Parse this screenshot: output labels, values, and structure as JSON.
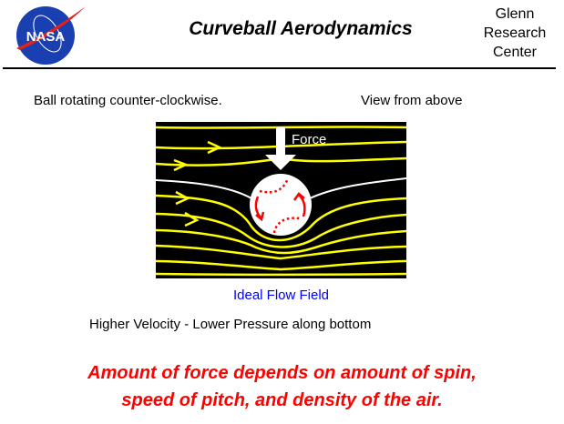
{
  "header": {
    "logo_text": "NASA",
    "title": "Curveball  Aerodynamics",
    "center_lines": [
      "Glenn",
      "Research",
      "Center"
    ]
  },
  "captions": {
    "rotation": "Ball rotating counter-clockwise.",
    "view": "View from above",
    "force_label": "Force",
    "field_label": "Ideal Flow Field",
    "pressure": "Higher Velocity - Lower Pressure  along bottom"
  },
  "conclusion": {
    "line1": "Amount of force depends on amount of spin,",
    "line2": "speed of pitch, and density of the air."
  },
  "colors": {
    "streamline": "#ffff00",
    "background": "#000000",
    "spin_arrows": "#ff0000",
    "conclusion": "#ff0000",
    "field_label": "#0000ff"
  }
}
